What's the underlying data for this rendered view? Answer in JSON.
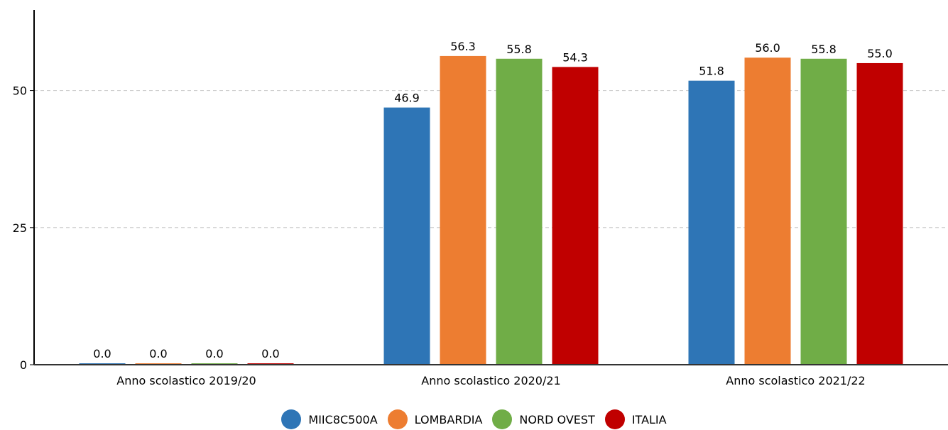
{
  "chart_data": {
    "type": "bar",
    "categories": [
      "Anno scolastico 2019/20",
      "Anno scolastico 2020/21",
      "Anno scolastico 2021/22"
    ],
    "series": [
      {
        "name": "MIIC8C500A",
        "color": "#2e75b6",
        "values": [
          0.0,
          46.9,
          51.8
        ],
        "labels": [
          "0.0",
          "46.9",
          "51.8"
        ]
      },
      {
        "name": "LOMBARDIA",
        "color": "#ed7d31",
        "values": [
          0.0,
          56.3,
          56.0
        ],
        "labels": [
          "0.0",
          "56.3",
          "56.0"
        ]
      },
      {
        "name": "NORD OVEST",
        "color": "#70ad47",
        "values": [
          0.0,
          55.8,
          55.8
        ],
        "labels": [
          "0.0",
          "55.8",
          "55.8"
        ]
      },
      {
        "name": "ITALIA",
        "color": "#c00000",
        "values": [
          0.0,
          54.3,
          55.0
        ],
        "labels": [
          "0.0",
          "54.3",
          "55.0"
        ]
      }
    ],
    "y_ticks": [
      "0",
      "25",
      "50"
    ],
    "ylim": [
      0,
      64.7
    ],
    "grid": true,
    "legend_position": "bottom"
  }
}
